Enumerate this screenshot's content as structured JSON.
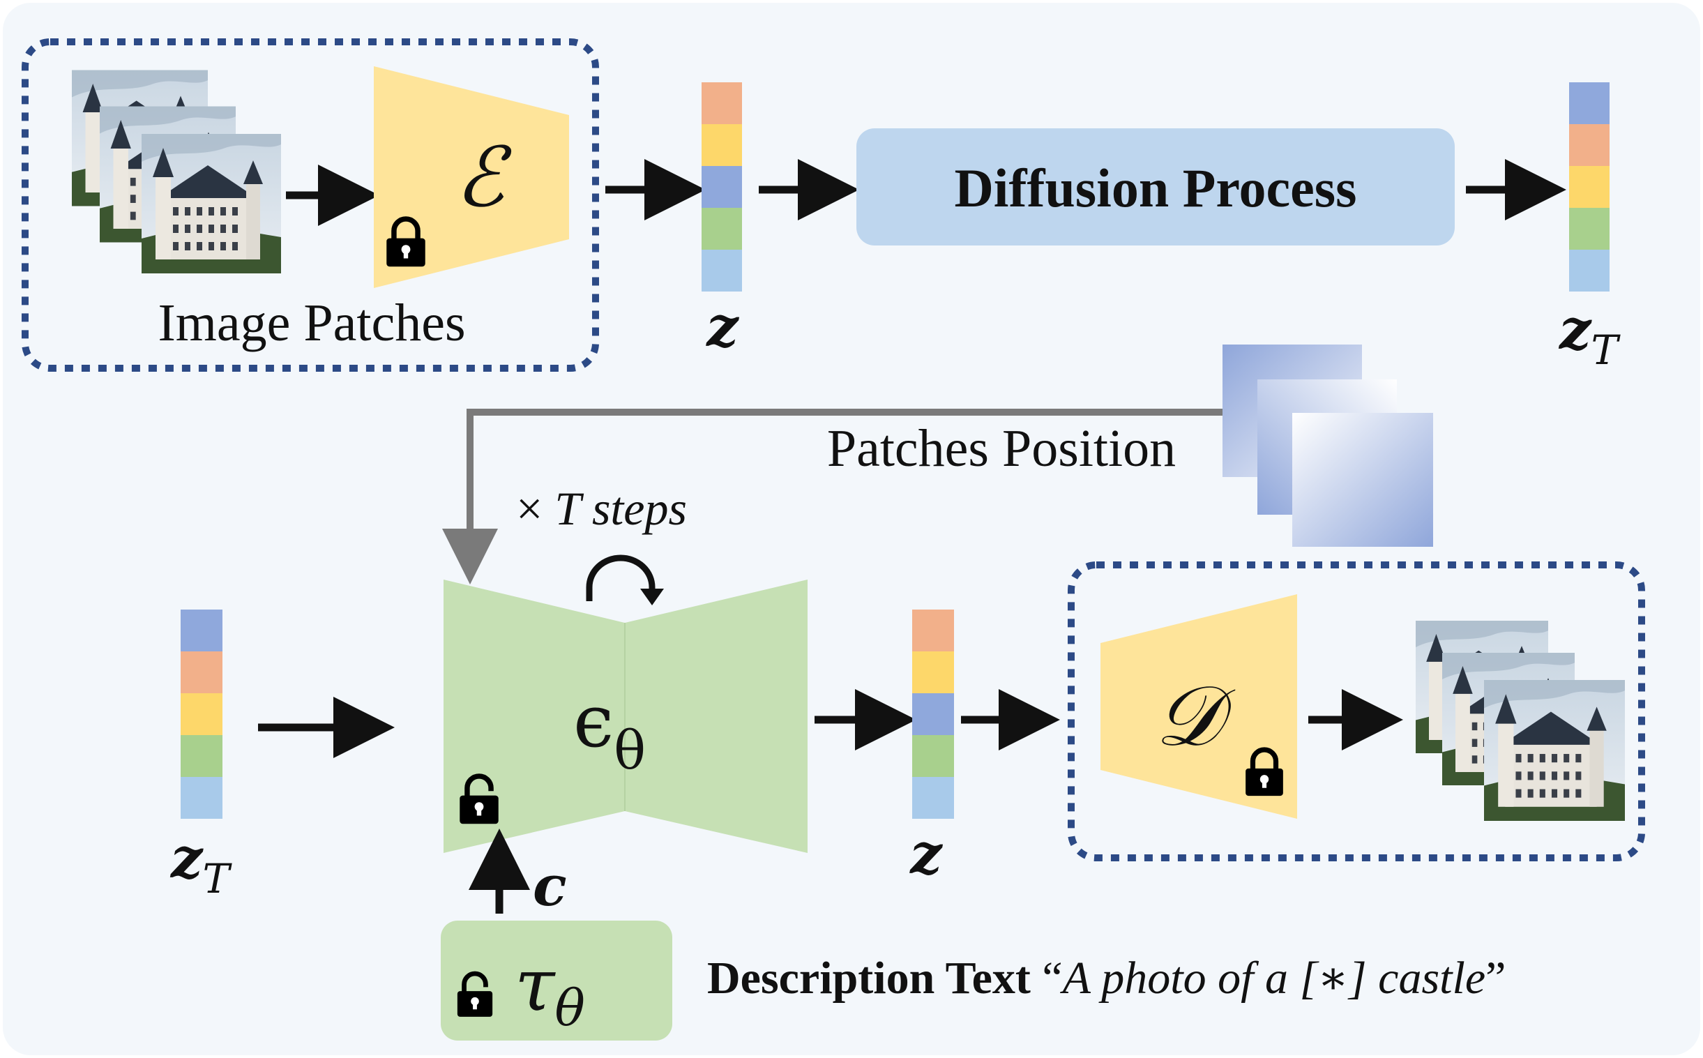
{
  "encoder": {
    "label": "Image Patches",
    "symbol": "ℰ"
  },
  "diffusion": {
    "label": "Diffusion Process"
  },
  "latents": {
    "z_label": "z",
    "zT_label": "z",
    "zT_sub": "T"
  },
  "position": {
    "label": "Patches Position"
  },
  "unet": {
    "steps_prefix": "× ",
    "steps_label": "T steps",
    "symbol": "ϵ",
    "symbol_sub": "θ"
  },
  "text_encoder": {
    "symbol": "τ",
    "symbol_sub": "θ",
    "cond_label": "c"
  },
  "decoder": {
    "symbol": "𝒟"
  },
  "description": {
    "label": "Description Text ",
    "open_quote": "“",
    "prompt": "A photo of a [∗] castle",
    "close_quote": "”"
  },
  "colors": {
    "background": "#f3f7fb",
    "frame": "#2c4a86",
    "encoder_fill": "#fee49a",
    "unet_fill": "#c6e0b4",
    "diffusion_fill": "#bed6ee",
    "latent_orange": "#f2b08a",
    "latent_yellow": "#fdd76a",
    "latent_blue": "#8fa8dc",
    "latent_green": "#a8d08d",
    "latent_lightblue": "#a8caea",
    "arrow": "#111111",
    "position_arrow": "#7a7a7a"
  },
  "icons": [
    "lock-icon",
    "unlock-icon",
    "loop-arrow-icon",
    "castle-image-icon",
    "position-squares-icon"
  ]
}
